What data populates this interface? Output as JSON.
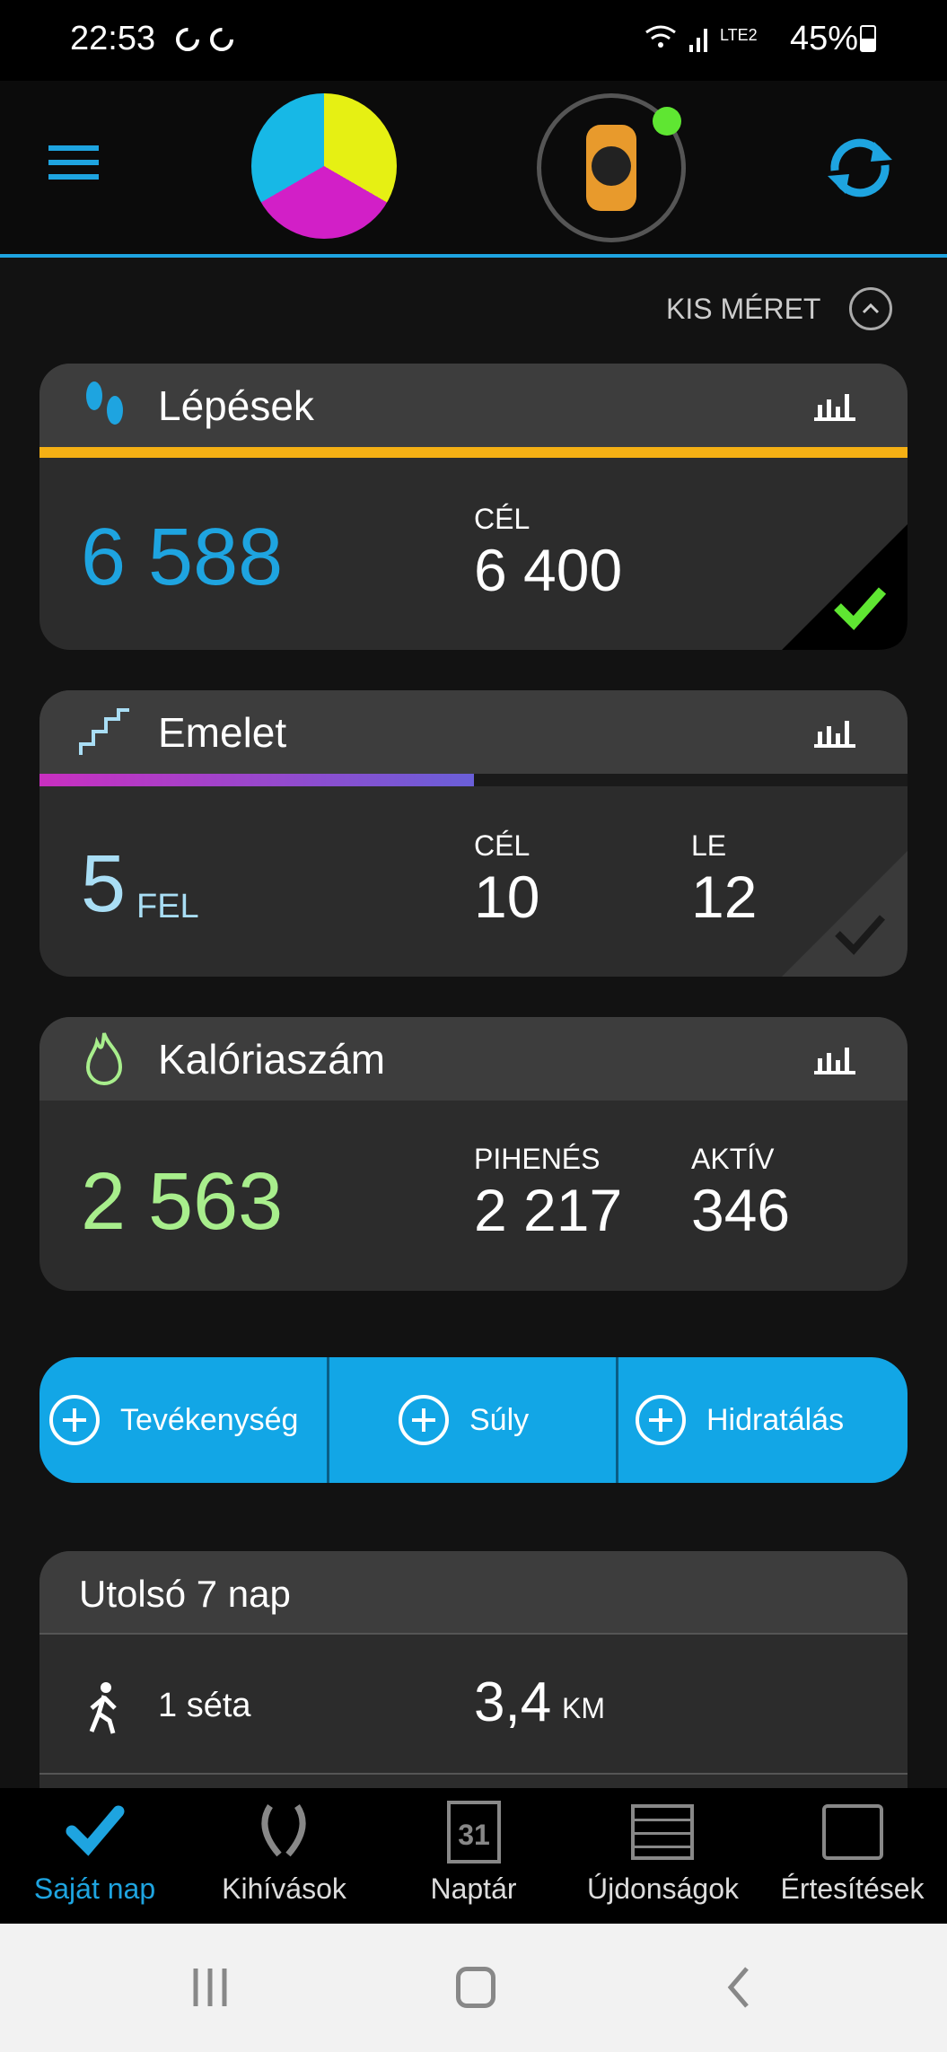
{
  "status": {
    "time": "22:53",
    "battery": "45%",
    "network": "LTE2"
  },
  "header": {
    "menu_icon": "hamburger-icon",
    "logo": "triathlon-logo",
    "device": "watch-icon",
    "device_connected": true,
    "sync_icon": "sync-icon"
  },
  "size_toggle": {
    "label": "KIS MÉRET"
  },
  "steps": {
    "title": "Lépések",
    "value": "6 588",
    "goal_label": "CÉL",
    "goal": "6 400",
    "goal_met": true,
    "color": "#1ea4e0",
    "bar_color": "#f5b014"
  },
  "floors": {
    "title": "Emelet",
    "value": "5",
    "unit": "FEL",
    "goal_label": "CÉL",
    "goal": "10",
    "down_label": "LE",
    "down": "12",
    "progress": 0.5,
    "color": "#a9def5"
  },
  "calories": {
    "title": "Kalóriaszám",
    "value": "2 563",
    "rest_label": "PIHENÉS",
    "rest": "2 217",
    "active_label": "AKTÍV",
    "active": "346",
    "color": "#a8ee8c"
  },
  "quick_add": [
    {
      "label": "Tevékenység"
    },
    {
      "label": "Súly"
    },
    {
      "label": "Hidratálás"
    }
  ],
  "last7": {
    "title": "Utolsó 7 nap",
    "rows": [
      {
        "label": "1 séta",
        "value": "3,4",
        "unit": "KM"
      }
    ]
  },
  "bottom_nav": [
    {
      "label": "Saját nap",
      "icon": "check-icon",
      "active": true
    },
    {
      "label": "Kihívások",
      "icon": "laurel-icon"
    },
    {
      "label": "Naptár",
      "icon": "calendar-icon",
      "day": "31"
    },
    {
      "label": "Újdonságok",
      "icon": "newspaper-icon"
    },
    {
      "label": "Értesítések",
      "icon": "inbox-icon"
    }
  ]
}
